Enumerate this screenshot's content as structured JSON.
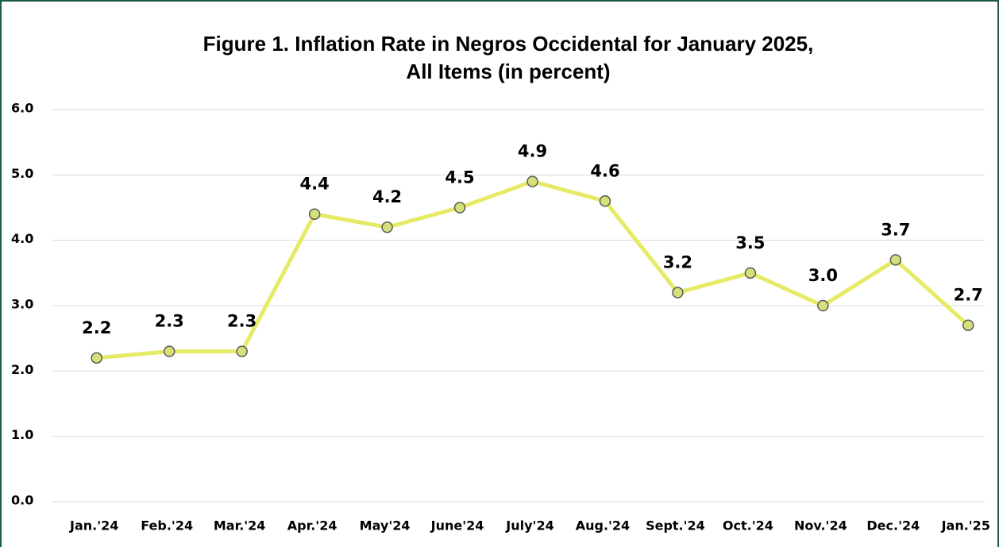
{
  "chart_data": {
    "type": "line",
    "title": "Figure 1. Inflation Rate in Negros Occidental for January 2025,",
    "subtitle": "All Items (in percent)",
    "categories": [
      "Jan.'24",
      "Feb.'24",
      "Mar.'24",
      "Apr.'24",
      "May'24",
      "June'24",
      "July'24",
      "Aug.'24",
      "Sept.'24",
      "Oct.'24",
      "Nov.'24",
      "Dec.'24",
      "Jan.'25"
    ],
    "series": [
      {
        "color": "#e6ea66",
        "values": [
          2.2,
          2.3,
          2.3,
          4.4,
          4.2,
          4.5,
          4.9,
          4.6,
          3.2,
          3.5,
          3.0,
          3.7,
          2.7
        ],
        "value_labels": [
          "2.2",
          "2.3",
          "2.3",
          "4.4",
          "4.2",
          "4.5",
          "4.9",
          "4.6",
          "3.2",
          "3.5",
          "3.0",
          "3.7",
          "2.7"
        ]
      }
    ],
    "ylim": [
      0,
      6
    ],
    "yticks": [
      {
        "value": 0,
        "label": "0.0"
      },
      {
        "value": 1,
        "label": "1.0"
      },
      {
        "value": 2,
        "label": "2.0"
      },
      {
        "value": 3,
        "label": "3.0"
      },
      {
        "value": 4,
        "label": "4.0"
      },
      {
        "value": 5,
        "label": "5.0"
      },
      {
        "value": 6,
        "label": "6.0"
      }
    ],
    "grid": true
  }
}
